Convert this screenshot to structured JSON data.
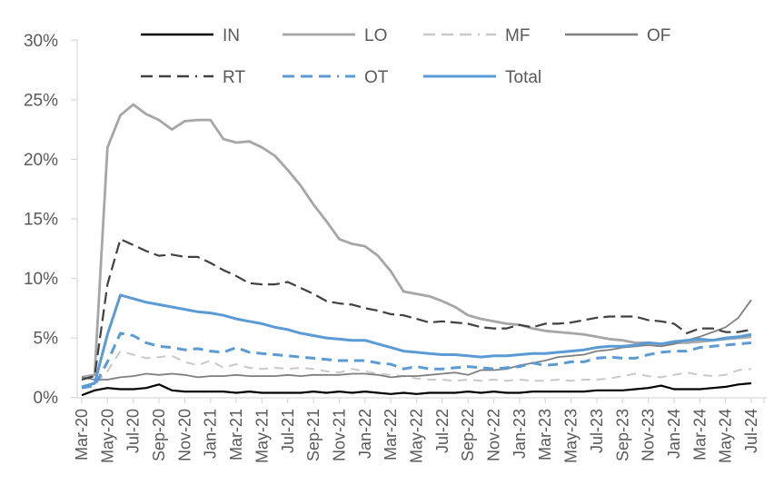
{
  "colors": {
    "text": "#595959",
    "axis": "#d9d9d9",
    "background": "#ffffff",
    "accent_blue": "#5b9bd5"
  },
  "chart_data": {
    "type": "line",
    "title": "",
    "xlabel": "",
    "ylabel": "",
    "ylim": [
      0,
      30
    ],
    "grid": "off",
    "legend_position": "top",
    "y_ticks": [
      "0%",
      "5%",
      "10%",
      "15%",
      "20%",
      "25%",
      "30%"
    ],
    "y_tick_values": [
      0,
      5,
      10,
      15,
      20,
      25,
      30
    ],
    "x_tick_labels": [
      "Mar-20",
      "May-20",
      "Jul-20",
      "Sep-20",
      "Nov-20",
      "Jan-21",
      "Mar-21",
      "May-21",
      "Jul-21",
      "Sep-21",
      "Nov-21",
      "Jan-22",
      "Mar-22",
      "May-22",
      "Jul-22",
      "Sep-22",
      "Nov-22",
      "Jan-23",
      "Mar-23",
      "May-23",
      "Jul-23",
      "Sep-23",
      "Nov-23",
      "Jan-24",
      "Mar-24",
      "May-24",
      "Jul-24"
    ],
    "months": [
      "Mar-20",
      "Apr-20",
      "May-20",
      "Jun-20",
      "Jul-20",
      "Aug-20",
      "Sep-20",
      "Oct-20",
      "Nov-20",
      "Dec-20",
      "Jan-21",
      "Feb-21",
      "Mar-21",
      "Apr-21",
      "May-21",
      "Jun-21",
      "Jul-21",
      "Aug-21",
      "Sep-21",
      "Oct-21",
      "Nov-21",
      "Dec-21",
      "Jan-22",
      "Feb-22",
      "Mar-22",
      "Apr-22",
      "May-22",
      "Jun-22",
      "Jul-22",
      "Aug-22",
      "Sep-22",
      "Oct-22",
      "Nov-22",
      "Dec-22",
      "Jan-23",
      "Feb-23",
      "Mar-23",
      "Apr-23",
      "May-23",
      "Jun-23",
      "Jul-23",
      "Aug-23",
      "Sep-23",
      "Oct-23",
      "Nov-23",
      "Dec-23",
      "Jan-24",
      "Feb-24",
      "Mar-24",
      "Apr-24",
      "May-24",
      "Jun-24",
      "Jul-24"
    ],
    "series": [
      {
        "name": "IN",
        "color": "#000000",
        "style": "solid",
        "width": 2.2,
        "dash": "",
        "values": [
          0.2,
          0.6,
          0.8,
          0.7,
          0.7,
          0.8,
          1.1,
          0.6,
          0.5,
          0.5,
          0.5,
          0.5,
          0.4,
          0.5,
          0.4,
          0.4,
          0.4,
          0.4,
          0.5,
          0.4,
          0.5,
          0.4,
          0.5,
          0.4,
          0.3,
          0.4,
          0.3,
          0.4,
          0.4,
          0.4,
          0.5,
          0.4,
          0.5,
          0.4,
          0.4,
          0.5,
          0.5,
          0.5,
          0.5,
          0.5,
          0.6,
          0.6,
          0.6,
          0.7,
          0.8,
          1.0,
          0.7,
          0.7,
          0.7,
          0.8,
          0.9,
          1.1,
          1.2
        ]
      },
      {
        "name": "LO",
        "color": "#a6a6a6",
        "style": "solid",
        "width": 2.8,
        "dash": "",
        "values": [
          1.7,
          1.9,
          21.0,
          23.7,
          24.6,
          23.8,
          23.3,
          22.5,
          23.2,
          23.3,
          23.3,
          21.7,
          21.4,
          21.5,
          21.0,
          20.3,
          19.1,
          17.8,
          16.2,
          14.8,
          13.3,
          12.9,
          12.7,
          11.9,
          10.6,
          8.9,
          8.7,
          8.5,
          8.1,
          7.6,
          6.9,
          6.6,
          6.4,
          6.2,
          6.1,
          5.8,
          5.6,
          5.5,
          5.4,
          5.3,
          5.1,
          4.9,
          4.8,
          4.6,
          4.6,
          4.5,
          4.6,
          4.6,
          4.7,
          4.8,
          4.9,
          5.0,
          5.1
        ]
      },
      {
        "name": "MF",
        "color": "#c9c9c9",
        "style": "dashed",
        "width": 2.0,
        "dash": "10 7",
        "values": [
          0.9,
          1.1,
          2.2,
          3.9,
          3.6,
          3.3,
          3.4,
          3.5,
          3.0,
          2.7,
          3.1,
          2.5,
          2.8,
          2.5,
          2.4,
          2.5,
          2.4,
          2.5,
          2.4,
          2.2,
          2.1,
          2.4,
          2.2,
          2.0,
          1.9,
          1.8,
          1.6,
          1.5,
          1.5,
          1.4,
          1.5,
          1.4,
          1.5,
          1.4,
          1.5,
          1.4,
          1.4,
          1.5,
          1.4,
          1.5,
          1.5,
          1.6,
          1.8,
          2.0,
          1.8,
          1.7,
          1.9,
          2.1,
          1.9,
          1.8,
          1.9,
          2.3,
          2.4
        ]
      },
      {
        "name": "OF",
        "color": "#7f7f7f",
        "style": "solid",
        "width": 1.8,
        "dash": "",
        "values": [
          1.7,
          1.5,
          1.5,
          1.7,
          1.8,
          2.0,
          1.9,
          2.0,
          1.9,
          1.7,
          1.8,
          1.8,
          1.9,
          1.8,
          1.8,
          1.8,
          1.9,
          1.8,
          1.9,
          1.9,
          1.9,
          2.0,
          2.0,
          1.9,
          1.7,
          1.8,
          1.8,
          1.9,
          2.0,
          2.1,
          1.9,
          2.3,
          2.3,
          2.4,
          2.7,
          2.9,
          3.1,
          3.4,
          3.5,
          3.6,
          3.9,
          4.0,
          4.2,
          4.3,
          4.4,
          4.3,
          4.5,
          4.8,
          5.1,
          5.5,
          5.9,
          6.7,
          8.2
        ]
      },
      {
        "name": "RT",
        "color": "#404040",
        "style": "dashed",
        "width": 2.2,
        "dash": "13 6",
        "values": [
          1.5,
          1.8,
          9.5,
          13.3,
          12.8,
          12.3,
          11.9,
          12.0,
          11.8,
          11.8,
          11.3,
          10.7,
          10.2,
          9.6,
          9.5,
          9.5,
          9.7,
          9.2,
          8.7,
          8.1,
          7.9,
          7.8,
          7.5,
          7.3,
          7.0,
          6.9,
          6.6,
          6.3,
          6.4,
          6.3,
          6.2,
          5.9,
          5.8,
          5.8,
          6.1,
          5.9,
          6.2,
          6.2,
          6.3,
          6.5,
          6.7,
          6.8,
          6.8,
          6.8,
          6.5,
          6.4,
          6.2,
          5.4,
          5.8,
          5.8,
          5.5,
          5.5,
          5.7
        ]
      },
      {
        "name": "OT",
        "color": "#5b9bd5",
        "style": "dashed",
        "width": 3.0,
        "dash": "11 7",
        "values": [
          0.8,
          1.0,
          3.0,
          5.4,
          5.2,
          4.6,
          4.3,
          4.2,
          4.0,
          4.1,
          3.9,
          3.8,
          4.2,
          3.8,
          3.7,
          3.6,
          3.5,
          3.4,
          3.3,
          3.2,
          3.1,
          3.1,
          3.1,
          2.9,
          2.8,
          2.4,
          2.6,
          2.4,
          2.4,
          2.5,
          2.6,
          2.5,
          2.4,
          2.5,
          2.6,
          2.9,
          2.7,
          2.8,
          3.0,
          3.0,
          3.3,
          3.4,
          3.3,
          3.3,
          3.6,
          3.8,
          3.9,
          3.9,
          4.2,
          4.3,
          4.4,
          4.5,
          4.6
        ]
      },
      {
        "name": "Total",
        "color": "#5b9bd5",
        "style": "solid",
        "width": 3.0,
        "dash": "",
        "values": [
          0.9,
          1.2,
          5.3,
          8.6,
          8.3,
          8.0,
          7.8,
          7.6,
          7.4,
          7.2,
          7.1,
          6.9,
          6.6,
          6.4,
          6.2,
          5.9,
          5.7,
          5.4,
          5.2,
          5.0,
          4.9,
          4.8,
          4.8,
          4.5,
          4.2,
          3.9,
          3.8,
          3.7,
          3.6,
          3.6,
          3.5,
          3.4,
          3.5,
          3.5,
          3.6,
          3.7,
          3.7,
          3.8,
          3.9,
          4.0,
          4.2,
          4.3,
          4.3,
          4.4,
          4.6,
          4.5,
          4.7,
          4.8,
          4.9,
          4.8,
          5.0,
          5.1,
          5.3
        ]
      }
    ]
  }
}
